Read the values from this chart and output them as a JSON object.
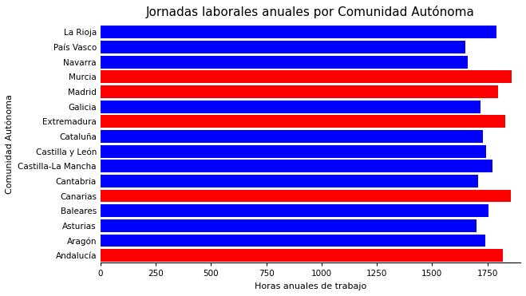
{
  "title": "Jornadas laborales anuales por Comunidad Autónoma",
  "xlabel": "Horas anuales de trabajo",
  "ylabel": "Comunidad Autónoma",
  "categories": [
    "Andalucía",
    "Aragón",
    "Asturias",
    "Baleares",
    "Canarias",
    "Cantabria",
    "Castilla-La Mancha",
    "Castilla y León",
    "Cataluña",
    "Extremadura",
    "Galicia",
    "Madrid",
    "Murcia",
    "Navarra",
    "País Vasco",
    "La Rioja"
  ],
  "values": [
    1820,
    1740,
    1700,
    1755,
    1855,
    1710,
    1775,
    1745,
    1730,
    1830,
    1720,
    1800,
    1860,
    1660,
    1650,
    1790
  ],
  "colors": [
    "red",
    "blue",
    "blue",
    "blue",
    "red",
    "blue",
    "blue",
    "blue",
    "blue",
    "red",
    "blue",
    "red",
    "red",
    "blue",
    "blue",
    "blue"
  ],
  "xlim": [
    0,
    1900
  ],
  "xticks": [
    0,
    250,
    500,
    750,
    1000,
    1250,
    1500,
    1750
  ],
  "fig_background": "white",
  "ax_background": "white",
  "grid_color": "white",
  "grid_linestyle": "--",
  "title_fontsize": 11,
  "label_fontsize": 8,
  "tick_fontsize": 7.5,
  "bar_height": 0.85
}
